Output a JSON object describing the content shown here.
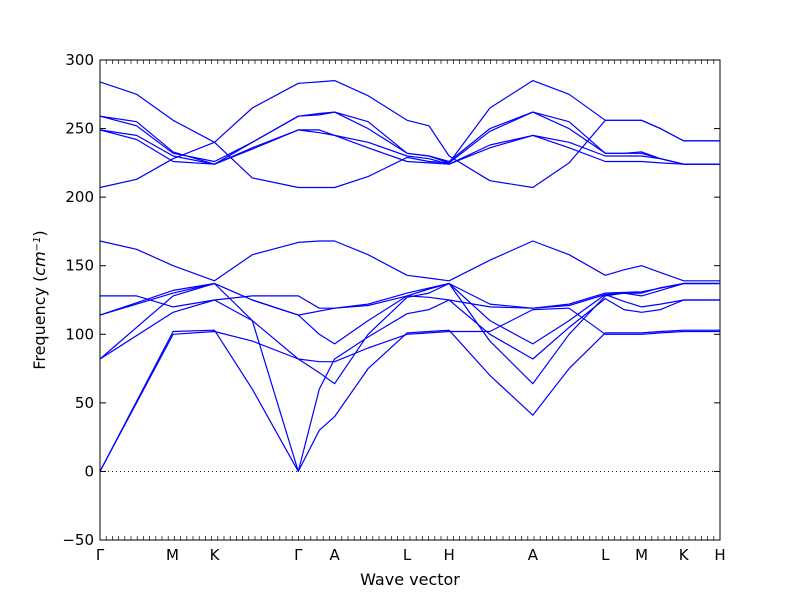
{
  "chart_data": {
    "type": "line",
    "title": "",
    "xlabel": "Wave vector",
    "ylabel": "Frequency",
    "ylabel_unit_base": "cm",
    "ylabel_unit_exp": "−1",
    "ylim": [
      -50,
      300
    ],
    "yticks": [
      -50,
      0,
      50,
      100,
      150,
      200,
      250,
      300
    ],
    "k_points": [
      {
        "label": "Γ",
        "x": 0.0
      },
      {
        "label": "M",
        "x": 0.595
      },
      {
        "label": "K",
        "x": 0.94
      },
      {
        "label": "Γ",
        "x": 1.627
      },
      {
        "label": "A",
        "x": 1.925
      },
      {
        "label": "L",
        "x": 2.52
      },
      {
        "label": "H",
        "x": 2.865
      },
      {
        "label": "A",
        "x": 3.552
      },
      {
        "label": "L",
        "x": 4.147
      },
      {
        "label": "M",
        "x": 4.445
      },
      {
        "label": "K",
        "x": 4.79
      },
      {
        "label": "H",
        "x": 5.088
      }
    ],
    "zero_line": true,
    "line_color": "#0000ff",
    "series": [
      {
        "x": [
          0,
          0.6,
          0.94,
          1.25,
          1.627,
          1.8,
          1.925,
          2.2,
          2.52,
          2.7,
          2.865,
          3.2,
          3.552,
          3.85,
          4.147,
          4.3,
          4.445,
          4.6,
          4.79,
          5.088
        ],
        "y": [
          0,
          100,
          102,
          95,
          82,
          80,
          80,
          90,
          100,
          101,
          102,
          102,
          118,
          119,
          100,
          100,
          100,
          101,
          102,
          102
        ]
      },
      {
        "x": [
          0,
          0.6,
          0.94,
          1.25,
          1.627,
          1.8,
          1.925,
          2.2,
          2.52,
          2.7,
          2.865,
          3.2,
          3.552,
          3.85,
          4.147,
          4.3,
          4.445,
          4.6,
          4.79,
          5.088
        ],
        "y": [
          0,
          102,
          103,
          60,
          0,
          30,
          40,
          75,
          101,
          102,
          103,
          70,
          41,
          75,
          101,
          101,
          101,
          102,
          103,
          103
        ]
      },
      {
        "x": [
          0,
          0.6,
          0.94,
          1.25,
          1.627,
          1.8,
          1.925,
          2.2,
          2.52,
          2.7,
          2.865,
          3.2,
          3.552,
          3.85,
          4.147,
          4.3,
          4.445,
          4.6,
          4.79,
          5.088
        ],
        "y": [
          82,
          116,
          125,
          110,
          0,
          60,
          82,
          98,
          115,
          118,
          125,
          100,
          82,
          105,
          126,
          118,
          116,
          118,
          125,
          125
        ]
      },
      {
        "x": [
          0,
          0.6,
          0.94,
          1.25,
          1.627,
          1.8,
          1.925,
          2.2,
          2.52,
          2.7,
          2.865,
          3.2,
          3.552,
          3.85,
          4.147,
          4.3,
          4.445,
          4.6,
          4.79,
          5.088
        ],
        "y": [
          82,
          128,
          137,
          110,
          82,
          72,
          64,
          100,
          127,
          130,
          137,
          95,
          64,
          100,
          128,
          130,
          130,
          134,
          137,
          137
        ]
      },
      {
        "x": [
          0,
          0.6,
          0.94,
          1.25,
          1.627,
          1.8,
          1.925,
          2.2,
          2.52,
          2.7,
          2.865,
          3.2,
          3.552,
          3.85,
          4.147,
          4.3,
          4.445,
          4.6,
          4.79,
          5.088
        ],
        "y": [
          114,
          130,
          137,
          125,
          114,
          100,
          93,
          110,
          128,
          133,
          137,
          110,
          93,
          110,
          129,
          130,
          128,
          132,
          137,
          137
        ]
      },
      {
        "x": [
          0,
          0.3,
          0.6,
          0.94,
          1.25,
          1.627,
          1.8,
          1.925,
          2.2,
          2.52,
          2.7,
          2.865,
          3.2,
          3.552,
          3.85,
          4.147,
          4.3,
          4.445,
          4.6,
          4.79,
          5.088
        ],
        "y": [
          128,
          128,
          120,
          125,
          128,
          128,
          119,
          119,
          121,
          128,
          127,
          125,
          120,
          119,
          121,
          129,
          124,
          120,
          122,
          125,
          125
        ]
      },
      {
        "x": [
          0,
          0.6,
          0.94,
          1.25,
          1.627,
          1.925,
          2.2,
          2.52,
          2.865,
          3.2,
          3.552,
          3.85,
          4.147,
          4.445,
          4.79,
          5.088
        ],
        "y": [
          114,
          132,
          137,
          125,
          114,
          119,
          122,
          130,
          137,
          122,
          119,
          122,
          130,
          131,
          137,
          137
        ]
      },
      {
        "x": [
          0,
          0.3,
          0.6,
          0.94,
          1.25,
          1.627,
          1.8,
          1.925,
          2.2,
          2.52,
          2.7,
          2.865,
          3.2,
          3.552,
          3.85,
          4.147,
          4.3,
          4.445,
          4.6,
          4.79,
          5.088
        ],
        "y": [
          168,
          162,
          150,
          139,
          158,
          167,
          168,
          168,
          158,
          143,
          141,
          139,
          154,
          168,
          158,
          143,
          147,
          150,
          145,
          139,
          139
        ]
      },
      {
        "x": [
          0,
          0.3,
          0.6,
          0.94,
          1.25,
          1.627,
          1.8,
          1.925,
          2.2,
          2.52,
          2.7,
          2.865,
          3.2,
          3.552,
          3.85,
          4.147,
          4.3,
          4.445,
          4.6,
          4.79,
          5.088
        ],
        "y": [
          207,
          213,
          228,
          240,
          265,
          283,
          284,
          285,
          274,
          256,
          252,
          230,
          212,
          207,
          225,
          256,
          256,
          256,
          250,
          241,
          241
        ]
      },
      {
        "x": [
          0,
          0.3,
          0.6,
          0.94,
          1.25,
          1.627,
          1.8,
          1.925,
          2.2,
          2.52,
          2.7,
          2.865,
          3.2,
          3.552,
          3.85,
          4.147,
          4.3,
          4.445,
          4.6,
          4.79,
          5.088
        ],
        "y": [
          284,
          275,
          256,
          240,
          214,
          207,
          207,
          207,
          215,
          229,
          226,
          225,
          265,
          285,
          275,
          256,
          256,
          256,
          250,
          241,
          241
        ]
      },
      {
        "x": [
          0,
          0.3,
          0.6,
          0.94,
          1.25,
          1.627,
          1.8,
          1.925,
          2.2,
          2.52,
          2.7,
          2.865,
          3.2,
          3.552,
          3.85,
          4.147,
          4.3,
          4.445,
          4.6,
          4.79,
          5.088
        ],
        "y": [
          259,
          255,
          233,
          224,
          240,
          259,
          260,
          262,
          255,
          232,
          230,
          225,
          248,
          262,
          255,
          232,
          232,
          232,
          228,
          224,
          224
        ]
      },
      {
        "x": [
          0,
          0.3,
          0.6,
          0.94,
          1.25,
          1.627,
          1.8,
          1.925,
          2.2,
          2.52,
          2.7,
          2.865,
          3.2,
          3.552,
          3.85,
          4.147,
          4.3,
          4.445,
          4.6,
          4.79,
          5.088
        ],
        "y": [
          249,
          245,
          230,
          224,
          235,
          249,
          247,
          245,
          240,
          230,
          228,
          224,
          238,
          245,
          240,
          230,
          230,
          230,
          228,
          224,
          224
        ]
      },
      {
        "x": [
          0,
          0.3,
          0.6,
          0.94,
          1.25,
          1.627,
          1.8,
          1.925,
          2.2,
          2.52,
          2.7,
          2.865,
          3.2,
          3.552,
          3.85,
          4.147,
          4.3,
          4.445,
          4.6,
          4.79,
          5.088
        ],
        "y": [
          249,
          242,
          226,
          224,
          236,
          249,
          249,
          245,
          236,
          226,
          225,
          224,
          236,
          245,
          236,
          226,
          226,
          226,
          225,
          224,
          224
        ]
      },
      {
        "x": [
          0,
          0.3,
          0.6,
          0.94,
          1.25,
          1.627,
          1.8,
          1.925,
          2.2,
          2.52,
          2.7,
          2.865,
          3.2,
          3.552,
          3.85,
          4.147,
          4.3,
          4.445,
          4.6,
          4.79,
          5.088
        ],
        "y": [
          259,
          252,
          232,
          226,
          240,
          259,
          261,
          262,
          250,
          232,
          230,
          226,
          250,
          262,
          250,
          232,
          232,
          233,
          228,
          224,
          224
        ]
      }
    ]
  }
}
